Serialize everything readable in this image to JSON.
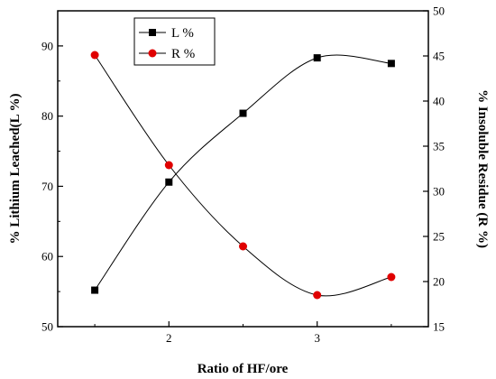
{
  "chart_data": {
    "type": "line",
    "xlabel": "Ratio of HF/ore",
    "xlim": [
      1.25,
      3.75
    ],
    "x_ticks": [
      2,
      3
    ],
    "x_tick_labels": [
      "2",
      "3"
    ],
    "y_left_label": "% Lithium Leached(L %)",
    "y_left_lim": [
      50,
      95
    ],
    "y_left_ticks": [
      50,
      60,
      70,
      80,
      90
    ],
    "y_left_tick_labels": [
      "50",
      "60",
      "70",
      "80",
      "90"
    ],
    "y_right_label": "% Insoluble Residue (R %)",
    "y_right_lim": [
      15,
      50
    ],
    "y_right_ticks": [
      15,
      20,
      25,
      30,
      35,
      40,
      45,
      50
    ],
    "y_right_tick_labels": [
      "15",
      "20",
      "25",
      "30",
      "35",
      "40",
      "45",
      "50"
    ],
    "x": [
      1.5,
      2.0,
      2.5,
      3.0,
      3.5
    ],
    "series": [
      {
        "name": "L %",
        "axis": "left",
        "marker": "square",
        "color": "#000000",
        "values": [
          55.2,
          70.6,
          80.4,
          88.3,
          87.5
        ]
      },
      {
        "name": "R %",
        "axis": "right",
        "marker": "circle",
        "color": "#e00000",
        "values": [
          45.1,
          32.9,
          23.9,
          18.5,
          20.5
        ]
      }
    ],
    "legend_position": "top-left",
    "grid": false
  }
}
